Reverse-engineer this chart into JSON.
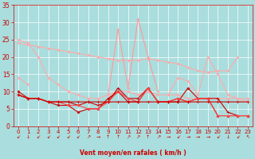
{
  "title": "",
  "xlabel": "Vent moyen/en rafales ( km/h )",
  "bg_color": "#aadddd",
  "grid_color": "#ffffff",
  "xlim": [
    -0.5,
    23.5
  ],
  "ylim": [
    0,
    35
  ],
  "yticks": [
    0,
    5,
    10,
    15,
    20,
    25,
    30,
    35
  ],
  "xticks": [
    0,
    1,
    2,
    3,
    4,
    5,
    6,
    7,
    8,
    9,
    10,
    11,
    12,
    13,
    14,
    15,
    16,
    17,
    18,
    19,
    20,
    21,
    22,
    23
  ],
  "series": [
    {
      "comment": "upper salmon declining line - long gust envelope top",
      "x": [
        0,
        1,
        2,
        3,
        4,
        5,
        6,
        7,
        8,
        9,
        10,
        11,
        12,
        13,
        14,
        15,
        16,
        17,
        18,
        19,
        20,
        21,
        22,
        23
      ],
      "y": [
        24,
        23.5,
        23,
        22.5,
        22,
        21.5,
        21,
        20.5,
        20,
        19.5,
        19,
        19,
        19,
        19.5,
        19,
        18.5,
        18,
        17,
        16,
        15.5,
        16,
        16,
        20,
        null
      ],
      "color": "#ffaaaa",
      "marker": "D",
      "markersize": 1.5,
      "linewidth": 0.8,
      "linestyle": "-"
    },
    {
      "comment": "upper salmon line with spike at 12-13 area - gust peaks",
      "x": [
        0,
        1,
        2,
        3,
        4,
        5,
        6,
        7,
        8,
        9,
        10,
        11,
        12,
        13,
        14,
        15,
        16,
        17,
        18,
        19,
        20,
        21,
        22,
        23
      ],
      "y": [
        14,
        12,
        null,
        null,
        null,
        null,
        null,
        null,
        null,
        null,
        null,
        null,
        null,
        null,
        null,
        null,
        null,
        null,
        null,
        null,
        null,
        null,
        null,
        null
      ],
      "color": "#ffaaaa",
      "marker": "D",
      "markersize": 1.5,
      "linewidth": 0.8,
      "linestyle": "-"
    },
    {
      "comment": "spike line up to 28 at x=10, 31 at x=12",
      "x": [
        9,
        10,
        11,
        12,
        13,
        14
      ],
      "y": [
        9,
        28,
        11,
        31,
        20,
        10
      ],
      "color": "#ff9999",
      "marker": "+",
      "markersize": 3.5,
      "linewidth": 0.8,
      "linestyle": "-"
    },
    {
      "comment": "salmon line from left declining",
      "x": [
        0,
        1,
        2,
        3,
        4,
        5,
        6,
        7,
        8,
        9,
        10,
        11,
        12,
        13,
        14,
        15,
        16,
        17,
        18,
        19,
        20,
        21,
        22,
        23
      ],
      "y": [
        25,
        24,
        20,
        14,
        12,
        10,
        9,
        8,
        8,
        9,
        10,
        10,
        9,
        10,
        9,
        9,
        9,
        8,
        8,
        8,
        8,
        8,
        8,
        8
      ],
      "color": "#ffaaaa",
      "marker": "D",
      "markersize": 1.5,
      "linewidth": 0.8,
      "linestyle": "-"
    },
    {
      "comment": "medium salmon right portion with peak",
      "x": [
        15,
        16,
        17,
        18,
        19,
        20,
        21,
        22,
        23
      ],
      "y": [
        9,
        14,
        13,
        9,
        20,
        15,
        9,
        8,
        7
      ],
      "color": "#ffaaaa",
      "marker": "D",
      "markersize": 1.5,
      "linewidth": 0.8,
      "linestyle": "-"
    },
    {
      "comment": "dark red line bottom with wiggles - mean wind",
      "x": [
        0,
        1,
        2,
        3,
        4,
        5,
        6,
        7,
        8,
        9,
        10,
        11,
        12,
        13,
        14,
        15,
        16,
        17,
        18,
        19,
        20,
        21,
        22,
        23
      ],
      "y": [
        10,
        8,
        8,
        7,
        6,
        6,
        4,
        5,
        5,
        8,
        10,
        7,
        7,
        11,
        7,
        7,
        7,
        11,
        8,
        8,
        3,
        3,
        3,
        3
      ],
      "color": "#cc0000",
      "marker": "D",
      "markersize": 1.5,
      "linewidth": 0.8,
      "linestyle": "-"
    },
    {
      "comment": "dark red line 2",
      "x": [
        0,
        1,
        2,
        3,
        4,
        5,
        6,
        7,
        8,
        9,
        10,
        11,
        12,
        13,
        14,
        15,
        16,
        17,
        18,
        19,
        20,
        21,
        22,
        23
      ],
      "y": [
        9,
        8,
        8,
        7,
        7,
        7,
        6,
        7,
        6,
        7,
        11,
        8,
        8,
        11,
        7,
        7,
        8,
        7,
        8,
        8,
        8,
        4,
        3,
        3
      ],
      "color": "#cc0000",
      "marker": "+",
      "markersize": 3,
      "linewidth": 0.8,
      "linestyle": "-"
    },
    {
      "comment": "medium red line",
      "x": [
        0,
        1,
        2,
        3,
        4,
        5,
        6,
        7,
        8,
        9,
        10,
        11,
        12,
        13,
        14,
        15,
        16,
        17,
        18,
        19,
        20,
        21,
        22,
        23
      ],
      "y": [
        9,
        8,
        8,
        7,
        7,
        6,
        6,
        5,
        5,
        7,
        10,
        8,
        7,
        11,
        7,
        7,
        8,
        7,
        8,
        8,
        3,
        3,
        3,
        3
      ],
      "color": "#ff4444",
      "marker": "D",
      "markersize": 1.5,
      "linewidth": 0.8,
      "linestyle": "-"
    },
    {
      "comment": "lower flat salmon gust lower bound",
      "x": [
        0,
        1,
        2,
        3,
        4,
        5,
        6,
        7,
        8,
        9,
        10,
        11,
        12,
        13,
        14,
        15,
        16,
        17,
        18,
        19,
        20,
        21,
        22,
        23
      ],
      "y": [
        9,
        8,
        8,
        7,
        7,
        7,
        7,
        7,
        7,
        7,
        7,
        7,
        7,
        7,
        7,
        7,
        7,
        7,
        7,
        7,
        7,
        7,
        7,
        7
      ],
      "color": "#cc0000",
      "marker": "+",
      "markersize": 3,
      "linewidth": 0.8,
      "linestyle": "-"
    }
  ],
  "arrow_symbols": [
    "↙",
    "↓",
    "↙",
    "↙",
    "↙",
    "↙",
    "↙",
    "↗",
    "→",
    "↑",
    "↑",
    "↗",
    "↗",
    "↑",
    "↗",
    "→",
    "↙",
    "→",
    "→",
    "→",
    "↙",
    "↓",
    "↙",
    "↖"
  ]
}
